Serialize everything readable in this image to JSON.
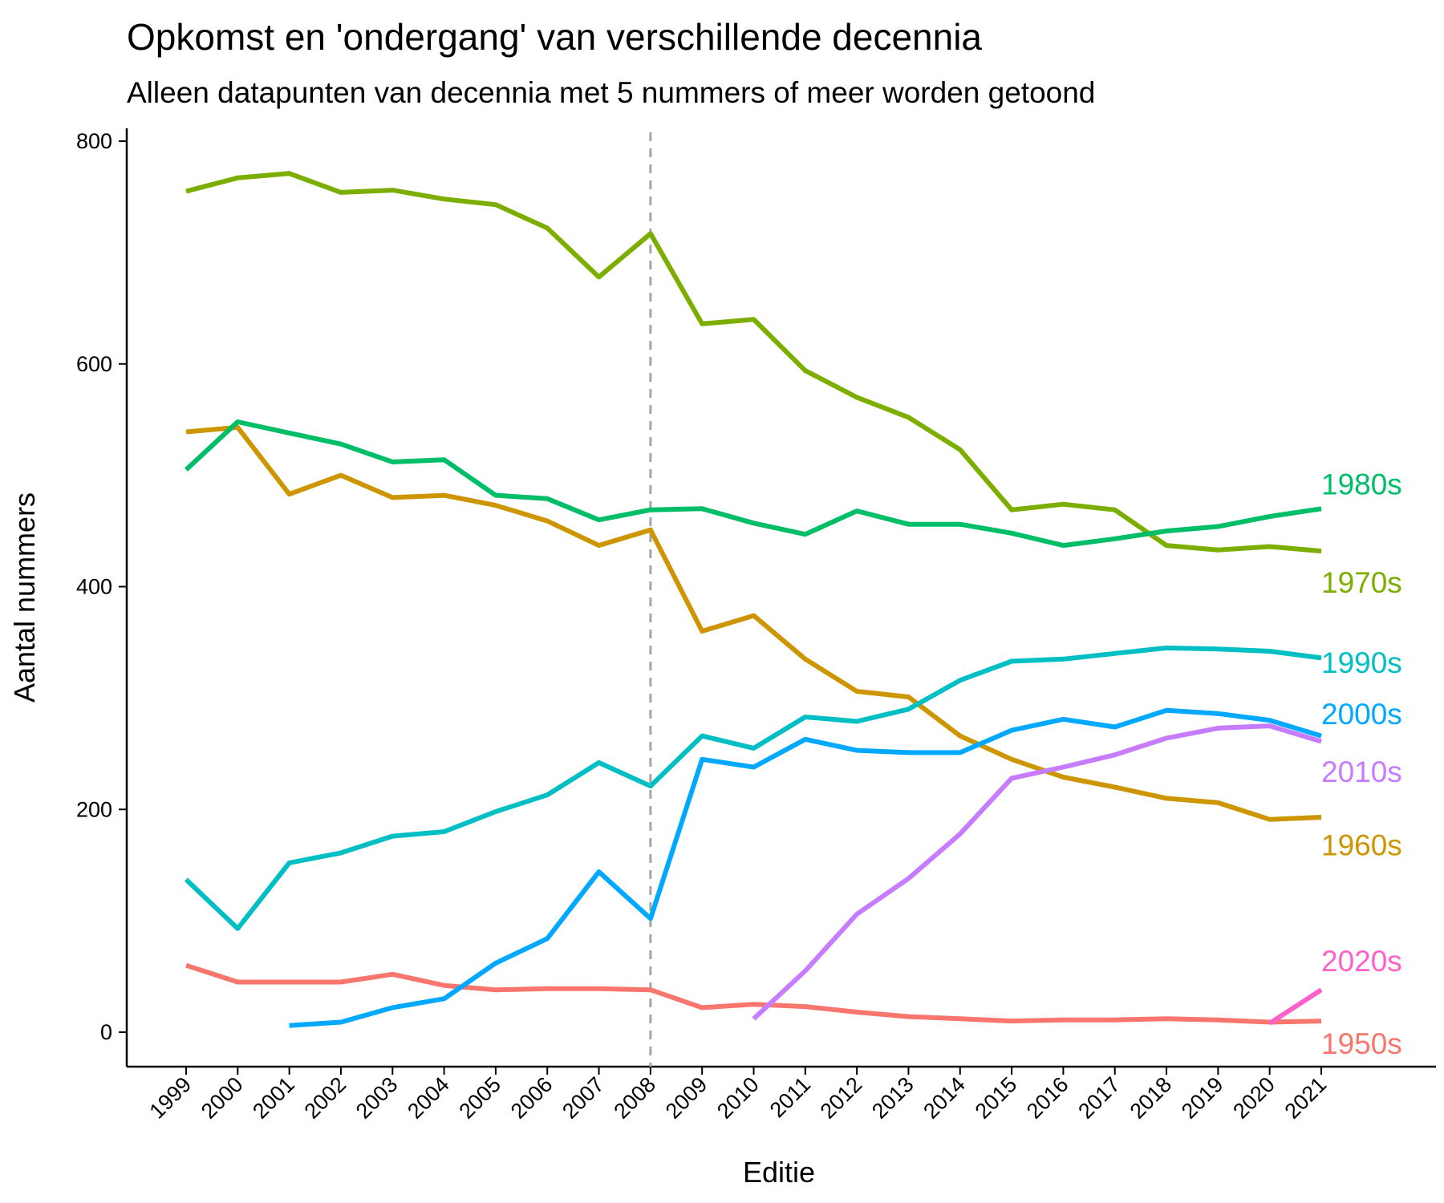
{
  "chart_data": {
    "type": "line",
    "title": "Opkomst en 'ondergang' van verschillende decennia",
    "subtitle": "Alleen datapunten van decennia met 5 nummers of meer worden getoond",
    "xlabel": "Editie",
    "ylabel": "Aantal nummers",
    "ylim": [
      -30,
      800
    ],
    "yticks": [
      0,
      200,
      400,
      600,
      800
    ],
    "x": [
      1999,
      2000,
      2001,
      2002,
      2003,
      2004,
      2005,
      2006,
      2007,
      2008,
      2009,
      2010,
      2011,
      2012,
      2013,
      2014,
      2015,
      2016,
      2017,
      2018,
      2019,
      2020,
      2021
    ],
    "vline": 2008,
    "grid": false,
    "legend": "direct labels at right end of lines",
    "series": [
      {
        "name": "1950s",
        "color": "#F8766D",
        "values": [
          60,
          45,
          45,
          45,
          52,
          42,
          38,
          39,
          39,
          38,
          22,
          25,
          23,
          18,
          14,
          12,
          10,
          11,
          11,
          12,
          11,
          9,
          10
        ]
      },
      {
        "name": "1960s",
        "color": "#CD9600",
        "values": [
          539,
          543,
          483,
          500,
          480,
          482,
          473,
          459,
          437,
          451,
          360,
          374,
          335,
          306,
          301,
          266,
          245,
          229,
          220,
          210,
          206,
          191,
          193
        ]
      },
      {
        "name": "1970s",
        "color": "#7CAE00",
        "values": [
          755,
          767,
          771,
          754,
          756,
          748,
          743,
          722,
          678,
          717,
          636,
          640,
          594,
          570,
          552,
          523,
          469,
          474,
          469,
          437,
          433,
          436,
          432
        ]
      },
      {
        "name": "1980s",
        "color": "#00BE67",
        "values": [
          505,
          548,
          538,
          528,
          512,
          514,
          482,
          479,
          460,
          469,
          470,
          457,
          447,
          468,
          456,
          456,
          448,
          437,
          443,
          450,
          454,
          463,
          470
        ]
      },
      {
        "name": "1990s",
        "color": "#00BFC4",
        "values": [
          137,
          93,
          152,
          161,
          176,
          180,
          198,
          213,
          242,
          221,
          266,
          255,
          283,
          279,
          290,
          316,
          333,
          335,
          340,
          345,
          344,
          342,
          336
        ]
      },
      {
        "name": "2000s",
        "color": "#00A9FF",
        "values": [
          null,
          null,
          6,
          9,
          22,
          30,
          62,
          84,
          144,
          102,
          245,
          238,
          263,
          253,
          251,
          251,
          271,
          281,
          274,
          289,
          286,
          280,
          266
        ]
      },
      {
        "name": "2010s",
        "color": "#C77CFF",
        "values": [
          null,
          null,
          null,
          null,
          null,
          null,
          null,
          null,
          null,
          null,
          null,
          12,
          55,
          106,
          138,
          178,
          228,
          238,
          249,
          264,
          273,
          275,
          261
        ]
      },
      {
        "name": "2020s",
        "color": "#FF61CC",
        "values": [
          null,
          null,
          null,
          null,
          null,
          null,
          null,
          null,
          null,
          null,
          null,
          null,
          null,
          null,
          null,
          null,
          null,
          null,
          null,
          null,
          null,
          8,
          38
        ]
      }
    ],
    "end_labels": [
      {
        "text": "1980s",
        "series": "1980s",
        "y": 492
      },
      {
        "text": "1970s",
        "series": "1970s",
        "y": 404
      },
      {
        "text": "1990s",
        "series": "1990s",
        "y": 332
      },
      {
        "text": "2000s",
        "series": "2000s",
        "y": 286
      },
      {
        "text": "2010s",
        "series": "2010s",
        "y": 234
      },
      {
        "text": "1960s",
        "series": "1960s",
        "y": 168
      },
      {
        "text": "2020s",
        "series": "2020s",
        "y": 64
      },
      {
        "text": "1950s",
        "series": "1950s",
        "y": -10
      }
    ]
  }
}
